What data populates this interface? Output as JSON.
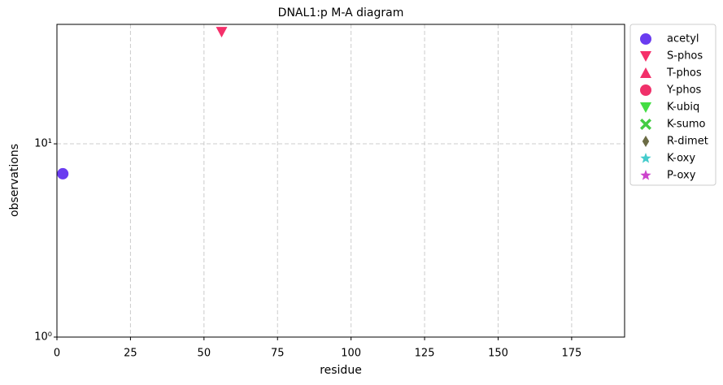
{
  "chart_data": {
    "type": "scatter",
    "title": "DNAL1:p M-A diagram",
    "x_label": "residue",
    "y_label": "observations",
    "xlim": [
      0,
      193
    ],
    "xticks": [
      0,
      25,
      50,
      75,
      100,
      125,
      150,
      175
    ],
    "ylim": [
      1,
      41.5
    ],
    "y_scale": "log",
    "yticks": [
      {
        "value": 1,
        "label": "10⁰"
      },
      {
        "value": 10,
        "label": "10¹"
      }
    ],
    "grid": true,
    "legend": "outside right",
    "series": [
      {
        "name": "acetyl",
        "color": "#6a3cf0",
        "marker": "circle",
        "x": [
          2
        ],
        "values": [
          7
        ]
      },
      {
        "name": "S-phos",
        "color": "#f5306a",
        "marker": "triangle-down",
        "x": [
          56
        ],
        "values": [
          38
        ]
      },
      {
        "name": "T-phos",
        "color": "#f2306a",
        "marker": "triangle-up",
        "x": [],
        "values": []
      },
      {
        "name": "Y-phos",
        "color": "#f0306a",
        "marker": "circle",
        "x": [],
        "values": []
      },
      {
        "name": "K-ubiq",
        "color": "#44dd44",
        "marker": "triangle-down",
        "x": [],
        "values": []
      },
      {
        "name": "K-sumo",
        "color": "#44cc44",
        "marker": "x",
        "x": [],
        "values": []
      },
      {
        "name": "R-dimet",
        "color": "#6b6b44",
        "marker": "diamond",
        "x": [],
        "values": []
      },
      {
        "name": "K-oxy",
        "color": "#44cccc",
        "marker": "star",
        "x": [],
        "values": []
      },
      {
        "name": "P-oxy",
        "color": "#cc44cc",
        "marker": "star",
        "x": [],
        "values": []
      }
    ]
  }
}
